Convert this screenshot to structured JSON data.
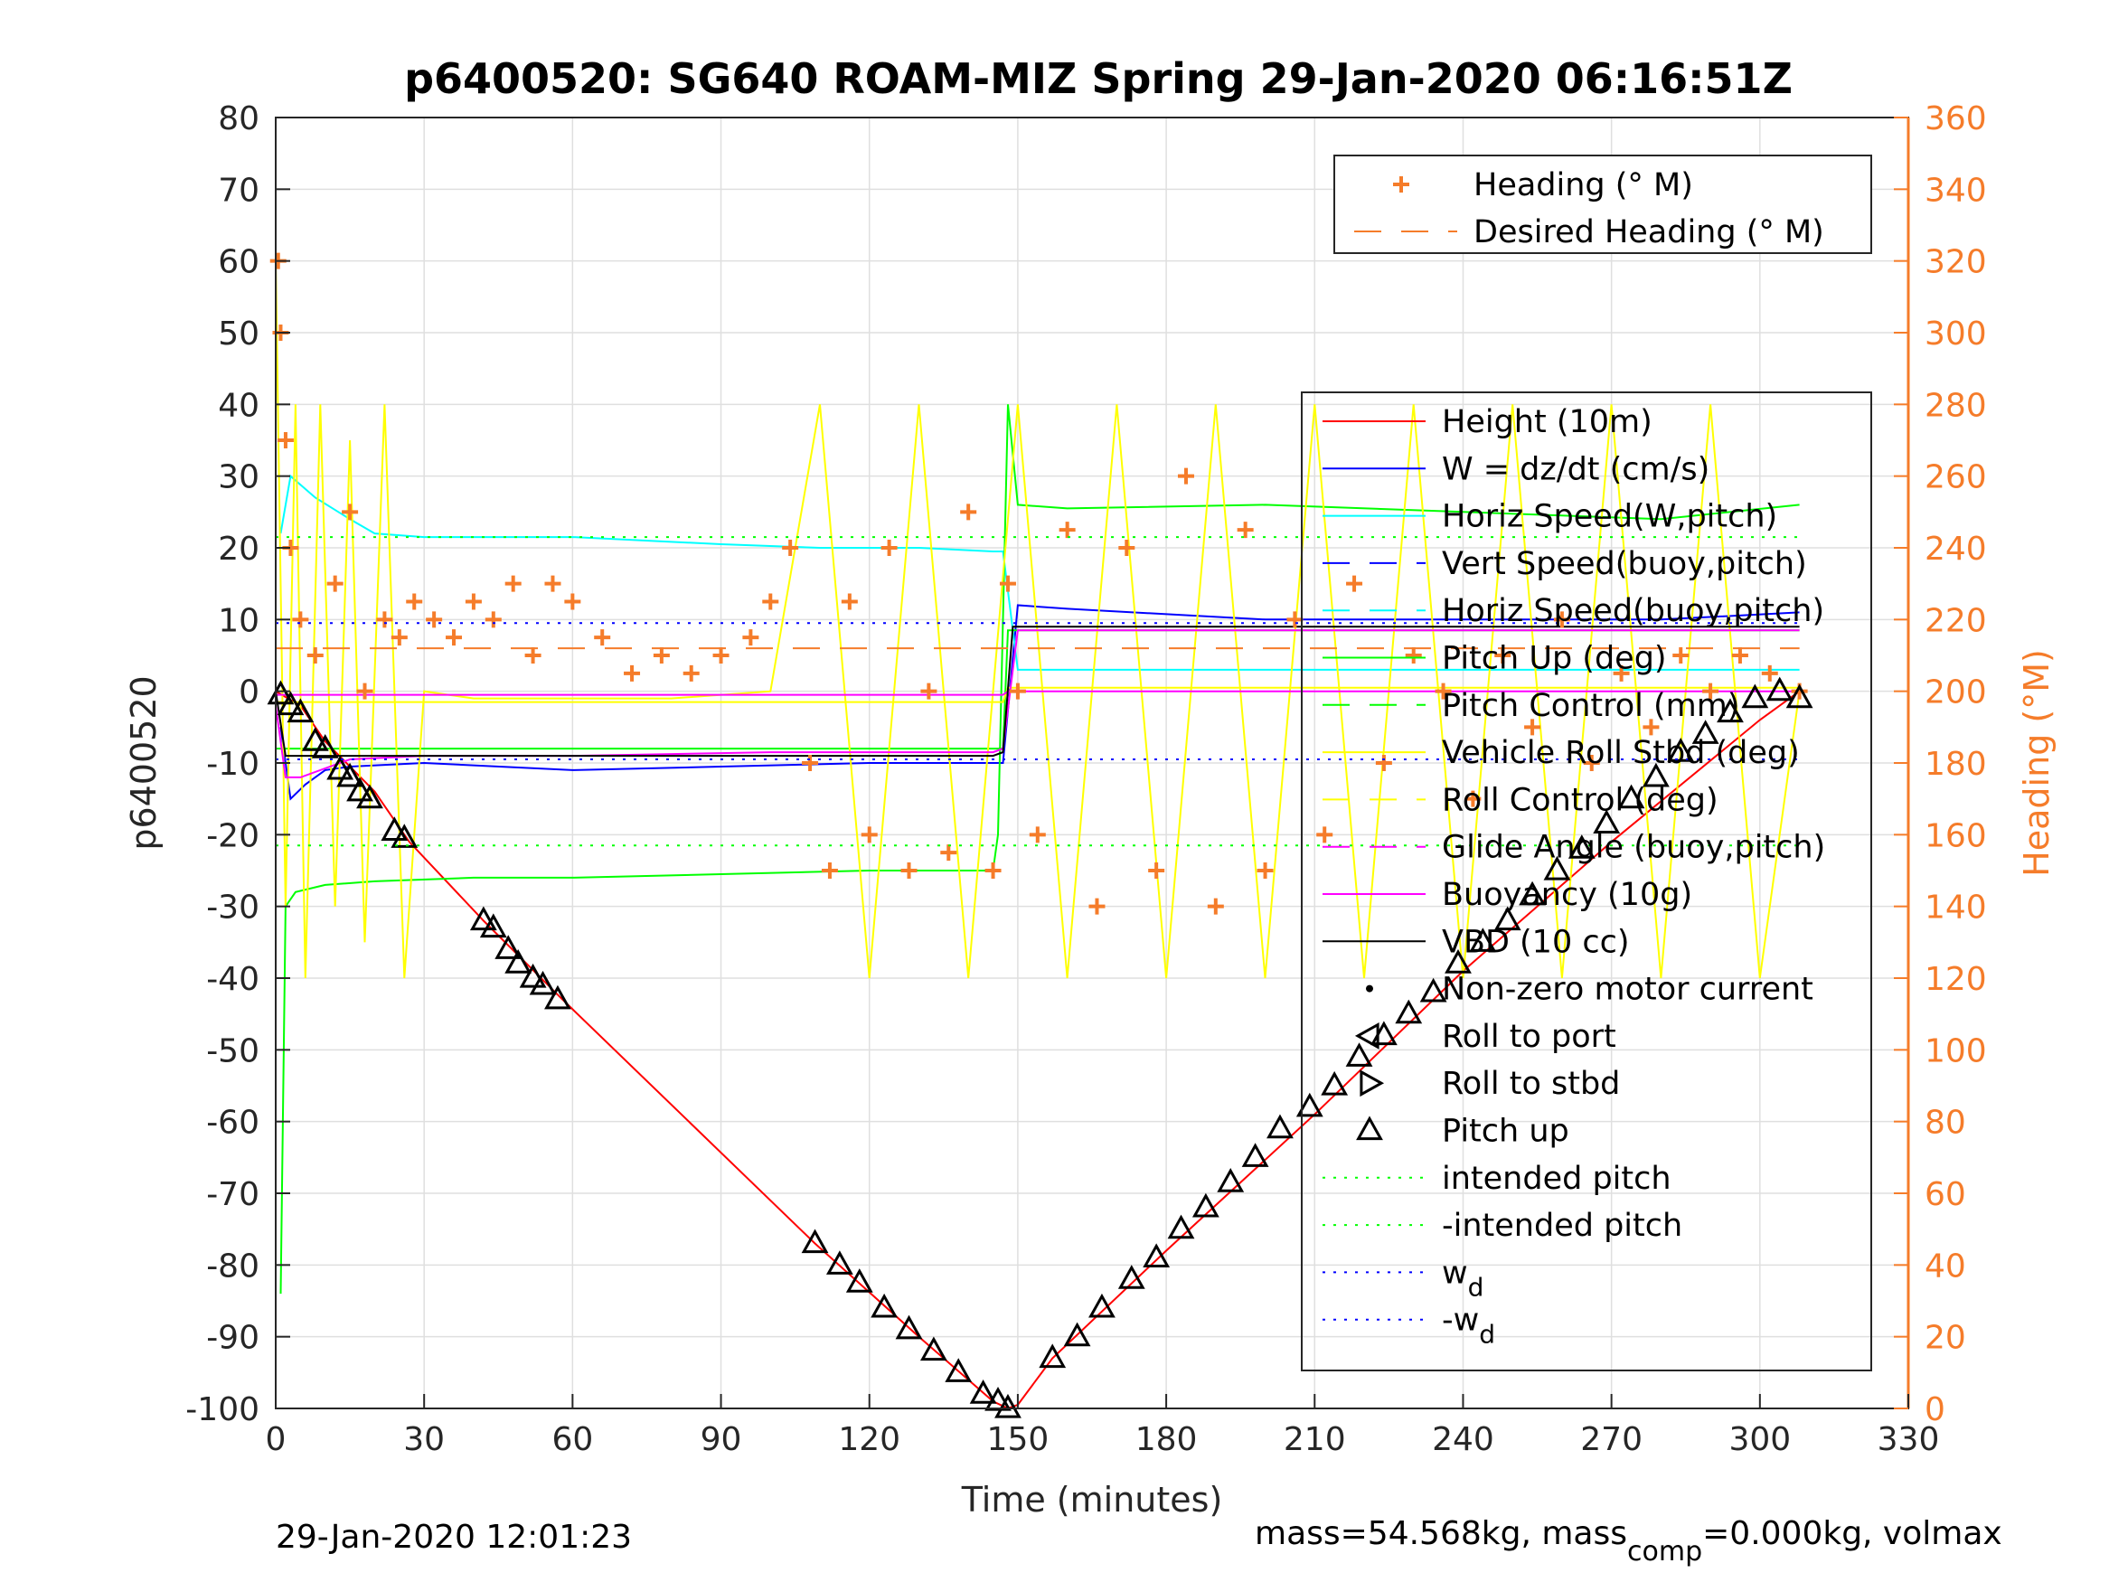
{
  "chart_data": {
    "type": "line",
    "title": "p6400520: SG640 ROAM-MIZ Spring 29-Jan-2020 06:16:51Z",
    "xlabel": "Time (minutes)",
    "ylabel": "p6400520",
    "ylabel_right": "Heading (°M)",
    "xlim": [
      0,
      330
    ],
    "ylim": [
      -100,
      80
    ],
    "ylim_right": [
      0,
      360
    ],
    "x_ticks": [
      "0",
      "30",
      "60",
      "90",
      "120",
      "150",
      "180",
      "210",
      "240",
      "270",
      "300",
      "330"
    ],
    "y_ticks": [
      "80",
      "70",
      "60",
      "50",
      "40",
      "30",
      "20",
      "10",
      "0",
      "-10",
      "-20",
      "-30",
      "-40",
      "-50",
      "-60",
      "-70",
      "-80",
      "-90",
      "-100"
    ],
    "y_ticks_right": [
      "360",
      "340",
      "320",
      "300",
      "280",
      "260",
      "240",
      "220",
      "200",
      "180",
      "160",
      "140",
      "120",
      "100",
      "80",
      "60",
      "40",
      "20",
      "0"
    ],
    "grid": true,
    "legends": [
      {
        "location": "top-right",
        "entries": [
          {
            "label": "Heading (° M)",
            "color": "#f57c2a",
            "style": "plus"
          },
          {
            "label": "Desired Heading (° M)",
            "color": "#f57c2a",
            "style": "dash"
          }
        ]
      },
      {
        "location": "right",
        "entries": [
          {
            "label": "Height (10m)",
            "color": "#ff0000",
            "style": "solid"
          },
          {
            "label": "W = dz/dt (cm/s)",
            "color": "#0000ff",
            "style": "solid"
          },
          {
            "label": "Horiz Speed(W,pitch)",
            "color": "#00ffff",
            "style": "solid"
          },
          {
            "label": "Vert Speed(buoy,pitch)",
            "color": "#0000ff",
            "style": "dash"
          },
          {
            "label": "Horiz Speed(buoy,pitch)",
            "color": "#00ffff",
            "style": "dash"
          },
          {
            "label": "Pitch Up (deg)",
            "color": "#00ff00",
            "style": "solid"
          },
          {
            "label": "Pitch Control (mm)",
            "color": "#00ff00",
            "style": "dash"
          },
          {
            "label": "Vehicle Roll Stbd (deg)",
            "color": "#ffff00",
            "style": "solid"
          },
          {
            "label": "Roll Control (deg)",
            "color": "#ffff00",
            "style": "dash"
          },
          {
            "label": "Glide Angle (buoy,pitch)",
            "color": "#ff00ff",
            "style": "dash"
          },
          {
            "label": "Buoyancy (10g)",
            "color": "#ff00ff",
            "style": "solid"
          },
          {
            "label": "VBD (10 cc)",
            "color": "#000000",
            "style": "solid"
          },
          {
            "label": "Non-zero motor current",
            "color": "#000000",
            "style": "dot"
          },
          {
            "label": "Roll to port",
            "color": "#000000",
            "style": "tri-left"
          },
          {
            "label": "Roll to stbd",
            "color": "#000000",
            "style": "tri-right"
          },
          {
            "label": "Pitch up",
            "color": "#000000",
            "style": "tri-up"
          },
          {
            "label": "intended pitch",
            "color": "#00ff00",
            "style": "dotted"
          },
          {
            "label": "-intended pitch",
            "color": "#00ff00",
            "style": "dotted"
          },
          {
            "label": "w",
            "subscript": "d",
            "color": "#0000ff",
            "style": "dotted"
          },
          {
            "label": "-w",
            "subscript": "d",
            "color": "#0000ff",
            "style": "dotted"
          }
        ]
      }
    ],
    "series": [
      {
        "name": "Height (10m)",
        "color": "#ff0000",
        "x": [
          0,
          5,
          10,
          20,
          27,
          42,
          58,
          109,
          130,
          145,
          148,
          150,
          157,
          180,
          210,
          240,
          270,
          300,
          308
        ],
        "y": [
          0,
          -2,
          -7,
          -14,
          -21,
          -32,
          -43,
          -77,
          -90,
          -99,
          -100,
          -99.5,
          -93,
          -78,
          -59,
          -39,
          -21,
          -4,
          0
        ]
      },
      {
        "name": "W = dz/dt (cm/s)",
        "color": "#0000ff",
        "x": [
          1,
          3,
          6,
          10,
          15,
          30,
          60,
          90,
          120,
          140,
          147,
          150,
          160,
          200,
          240,
          280,
          308
        ],
        "y": [
          -5,
          -15,
          -13,
          -11,
          -10.5,
          -10,
          -11,
          -10.5,
          -10,
          -10,
          -10,
          12,
          11.5,
          10,
          10,
          10,
          11
        ]
      },
      {
        "name": "Horiz Speed(W,pitch)",
        "color": "#00ffff",
        "x": [
          1,
          3,
          8,
          15,
          20,
          30,
          60,
          90,
          110,
          130,
          145,
          147,
          150,
          170,
          200,
          240,
          280,
          308
        ],
        "y": [
          22,
          30,
          27,
          24,
          22,
          21.5,
          21.5,
          20.5,
          20,
          20,
          19.5,
          19.5,
          3,
          3,
          3,
          3,
          3,
          3
        ]
      },
      {
        "name": "Pitch Up (deg)",
        "color": "#00ff00",
        "x": [
          1,
          2,
          4,
          10,
          20,
          40,
          60,
          90,
          120,
          145,
          146,
          148,
          150,
          160,
          200,
          240,
          280,
          308
        ],
        "y": [
          -84,
          -30,
          -28,
          -27,
          -26.5,
          -26,
          -26,
          -25.5,
          -25,
          -25,
          -20,
          40,
          26,
          25.5,
          26,
          25,
          24,
          26
        ]
      },
      {
        "name": "Pitch Control (mm)",
        "color": "#00ff00",
        "x": [
          0,
          147,
          148,
          308
        ],
        "y": [
          -8,
          -8,
          8.5,
          8.5
        ]
      },
      {
        "name": "Vehicle Roll Stbd (deg)",
        "color": "#ffff00",
        "x": [
          0,
          2,
          4,
          6,
          9,
          12,
          15,
          18,
          22,
          26,
          30,
          40,
          60,
          80,
          100,
          110,
          120,
          130,
          140,
          150,
          160,
          170,
          180,
          190,
          200,
          210,
          220,
          230,
          240,
          250,
          260,
          270,
          280,
          290,
          300,
          308
        ],
        "y": [
          60,
          -30,
          40,
          -40,
          40,
          -30,
          35,
          -35,
          40,
          -40,
          0,
          -1,
          -1,
          -1,
          0,
          40,
          -40,
          40,
          -40,
          40,
          -40,
          40,
          -40,
          40,
          -40,
          40,
          -40,
          40,
          -40,
          40,
          -40,
          40,
          -40,
          40,
          -40,
          0
        ]
      },
      {
        "name": "Roll Control (deg)",
        "color": "#ffff00",
        "x": [
          0,
          147,
          148,
          308
        ],
        "y": [
          -1.5,
          -1.5,
          0.5,
          0.5
        ]
      },
      {
        "name": "Glide Angle (buoy,pitch)",
        "color": "#ff00ff",
        "x": [
          0,
          147,
          148,
          308
        ],
        "y": [
          -0.5,
          -0.5,
          0,
          0
        ]
      },
      {
        "name": "Buoyancy (10g)",
        "color": "#ff00ff",
        "x": [
          0,
          2,
          5,
          15,
          30,
          60,
          100,
          145,
          147,
          150,
          308
        ],
        "y": [
          -2,
          -12,
          -12,
          -9.5,
          -9,
          -9,
          -8.5,
          -8.5,
          -8,
          8.5,
          8.5
        ]
      },
      {
        "name": "VBD (10 cc)",
        "color": "#000000",
        "x": [
          0,
          2,
          3,
          145,
          147,
          149,
          151,
          308
        ],
        "y": [
          0,
          -9,
          -9,
          -9,
          -8.5,
          9,
          9,
          9
        ]
      },
      {
        "name": "Heading (° M)",
        "color": "#f57c2a",
        "style": "plus",
        "x": [
          0.5,
          1,
          2,
          3,
          5,
          8,
          12,
          15,
          18,
          22,
          25,
          28,
          32,
          36,
          40,
          44,
          48,
          52,
          56,
          60,
          66,
          72,
          78,
          84,
          90,
          96,
          100,
          104,
          108,
          112,
          116,
          120,
          124,
          128,
          132,
          136,
          140,
          145,
          148,
          150,
          154,
          160,
          166,
          172,
          178,
          184,
          190,
          196,
          200,
          206,
          212,
          218,
          224,
          230,
          236,
          242,
          248,
          254,
          260,
          266,
          272,
          278,
          284,
          290,
          296,
          302,
          308
        ],
        "y": [
          320,
          300,
          270,
          240,
          220,
          210,
          230,
          250,
          200,
          220,
          215,
          225,
          220,
          215,
          225,
          220,
          230,
          210,
          230,
          225,
          215,
          205,
          210,
          205,
          210,
          215,
          225,
          240,
          180,
          150,
          225,
          160,
          240,
          150,
          200,
          155,
          250,
          150,
          230,
          200,
          160,
          245,
          140,
          240,
          150,
          260,
          140,
          245,
          150,
          220,
          160,
          230,
          180,
          210,
          200,
          170,
          210,
          190,
          220,
          180,
          205,
          190,
          210,
          200,
          210,
          205,
          200
        ]
      },
      {
        "name": "Desired Heading (° M)",
        "color": "#f57c2a",
        "style": "dash",
        "x": [
          0,
          148,
          149,
          308
        ],
        "y": [
          212,
          212,
          212,
          212
        ]
      },
      {
        "name": "Pitch up",
        "color": "#000000",
        "style": "tri-up",
        "x": [
          1,
          3,
          5,
          8,
          10,
          13,
          15,
          17,
          19,
          24,
          26,
          42,
          44,
          47,
          49,
          52,
          54,
          57,
          109,
          114,
          118,
          123,
          128,
          133,
          138,
          143,
          146,
          148,
          157,
          162,
          167,
          173,
          178,
          183,
          188,
          193,
          198,
          203,
          209,
          214,
          219,
          224,
          229,
          234,
          239,
          244,
          249,
          254,
          259,
          264,
          269,
          274,
          279,
          284,
          289,
          294,
          299,
          304,
          308
        ],
        "y": [
          -0.5,
          -2,
          -3,
          -7,
          -8,
          -11,
          -12,
          -14,
          -15,
          -19.5,
          -20.5,
          -32,
          -33,
          -36,
          -38,
          -40,
          -41,
          -43,
          -77,
          -80,
          -82.5,
          -86,
          -89,
          -92,
          -95,
          -98,
          -99,
          -100,
          -93,
          -90,
          -86,
          -82,
          -79,
          -75,
          -72,
          -68.5,
          -65,
          -61,
          -58,
          -55,
          -51,
          -48,
          -45,
          -42,
          -38,
          -35,
          -32,
          -28.5,
          -25,
          -22,
          -18.5,
          -15,
          -12,
          -8.5,
          -6,
          -3,
          -1,
          0,
          -1
        ]
      },
      {
        "name": "intended pitch",
        "color": "#00ff00",
        "style": "dotted",
        "x": [
          0,
          308
        ],
        "y": [
          21.5,
          21.5
        ]
      },
      {
        "name": "-intended pitch",
        "color": "#00ff00",
        "style": "dotted",
        "x": [
          0,
          308
        ],
        "y": [
          -21.5,
          -21.5
        ]
      },
      {
        "name": "w_d",
        "color": "#0000ff",
        "style": "dotted",
        "x": [
          0,
          308
        ],
        "y": [
          9.5,
          9.5
        ]
      },
      {
        "name": "-w_d",
        "color": "#0000ff",
        "style": "dotted",
        "x": [
          0,
          308
        ],
        "y": [
          -9.5,
          -9.5
        ]
      }
    ],
    "footer_left": "29-Jan-2020 12:01:23",
    "footer_right_parts": [
      "mass=54.568kg, mass",
      "comp",
      "=0.000kg, volmax"
    ]
  }
}
